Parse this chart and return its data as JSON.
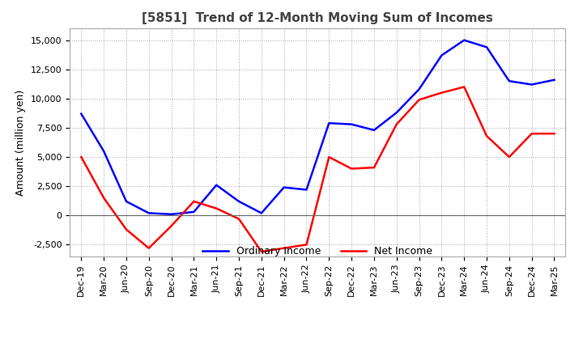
{
  "title": "[5851]  Trend of 12-Month Moving Sum of Incomes",
  "ylabel": "Amount (million yen)",
  "ylim": [
    -3500,
    16000
  ],
  "yticks": [
    -2500,
    0,
    2500,
    5000,
    7500,
    10000,
    12500,
    15000
  ],
  "x_labels": [
    "Dec-19",
    "Mar-20",
    "Jun-20",
    "Sep-20",
    "Dec-20",
    "Mar-21",
    "Jun-21",
    "Sep-21",
    "Dec-21",
    "Mar-22",
    "Jun-22",
    "Sep-22",
    "Dec-22",
    "Mar-23",
    "Jun-23",
    "Sep-23",
    "Dec-23",
    "Mar-24",
    "Jun-24",
    "Sep-24",
    "Dec-24",
    "Mar-25"
  ],
  "ordinary_income": [
    8700,
    5500,
    1200,
    200,
    100,
    300,
    2600,
    1200,
    200,
    2400,
    2200,
    7900,
    7800,
    7300,
    8800,
    10800,
    13700,
    15000,
    14400,
    11500,
    11200,
    11600
  ],
  "net_income": [
    5000,
    1500,
    -1200,
    -2800,
    -900,
    1200,
    600,
    -300,
    -3100,
    -2800,
    -2500,
    5000,
    4000,
    4100,
    7800,
    9900,
    10500,
    11000,
    6800,
    5000,
    7000,
    7000
  ],
  "ordinary_income_color": "#0000ff",
  "net_income_color": "#ff0000",
  "background_color": "#ffffff",
  "legend_ordinary": "Ordinary Income",
  "legend_net": "Net Income",
  "title_fontsize": 11,
  "tick_fontsize": 8,
  "ylabel_fontsize": 9
}
